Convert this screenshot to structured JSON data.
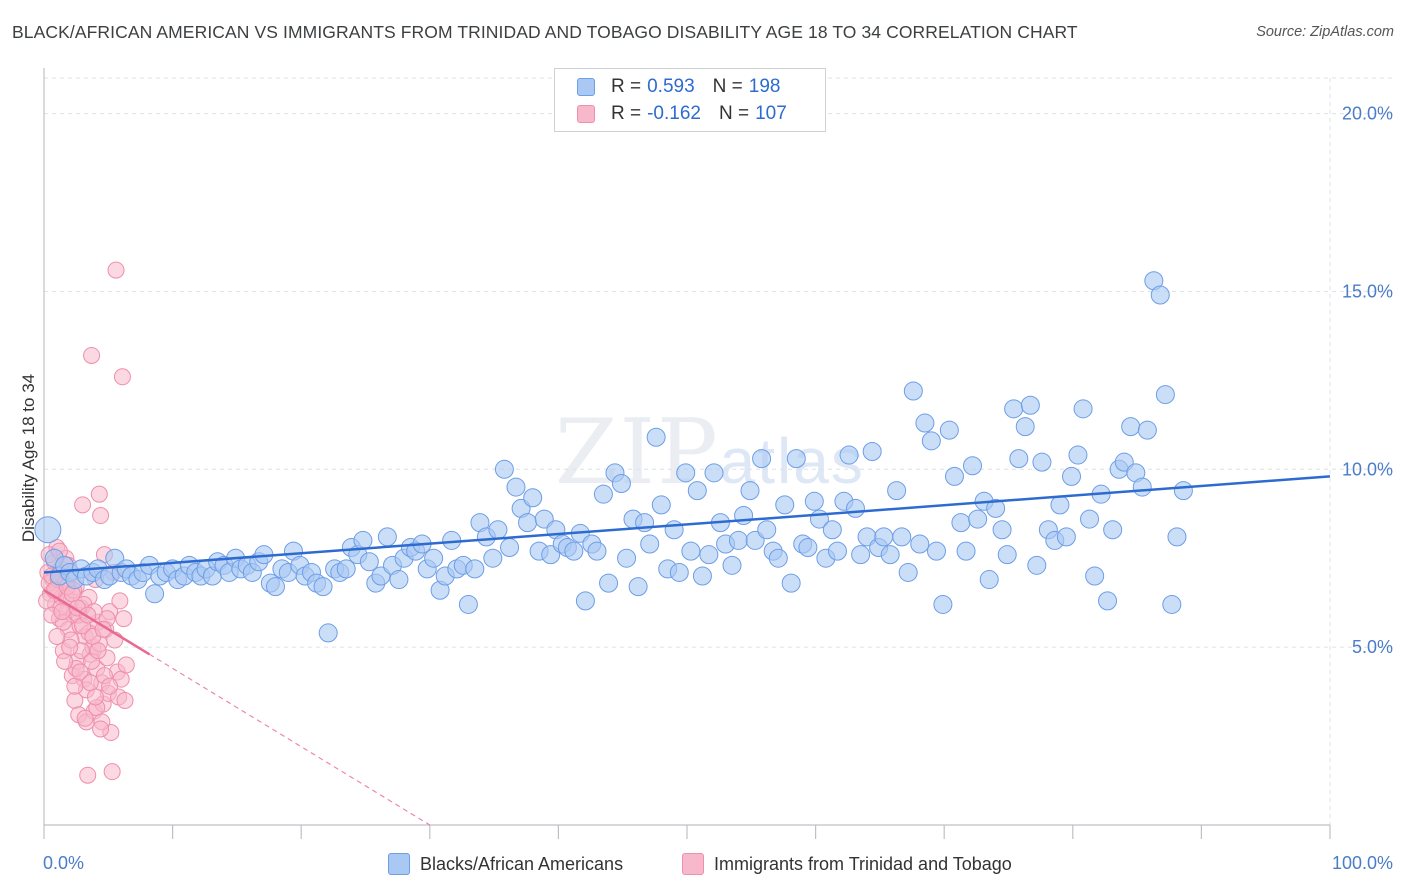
{
  "header": {
    "title": "BLACK/AFRICAN AMERICAN VS IMMIGRANTS FROM TRINIDAD AND TOBAGO DISABILITY AGE 18 TO 34 CORRELATION CHART",
    "source": "Source: ZipAtlas.com"
  },
  "watermark": {
    "main": "ZIP",
    "sub": "atlas"
  },
  "legend": {
    "r_label": "R =",
    "n_label": "N =",
    "rows": [
      {
        "r": "0.593",
        "n": "198",
        "color": "#a9c8f3",
        "border": "#6d9ee6"
      },
      {
        "r": "-0.162",
        "n": "107",
        "color": "#f7b8cb",
        "border": "#ee8fac"
      }
    ]
  },
  "bottom_legend": {
    "series_a": "Blacks/African Americans",
    "series_b": "Immigrants from Trinidad and Tobago"
  },
  "colors": {
    "blue_fill": "#a9c8f3",
    "blue_stroke": "#6d9ee6",
    "blue_line": "#2e6bd0",
    "pink_fill": "#f7b8cb",
    "pink_stroke": "#ee8fac",
    "pink_line": "#e86a93",
    "grid": "#dde1e6",
    "tick_text": "#4a7cc9"
  },
  "chart_data": {
    "type": "scatter",
    "title": "BLACK/AFRICAN AMERICAN VS IMMIGRANTS FROM TRINIDAD AND TOBAGO DISABILITY AGE 18 TO 34 CORRELATION CHART",
    "xlabel": "",
    "ylabel": "Disability Age 18 to 34",
    "xlim": [
      0,
      100
    ],
    "ylim": [
      0,
      21
    ],
    "x_tick_labels": [
      "0.0%",
      "100.0%"
    ],
    "y_ticks": [
      5,
      10,
      15,
      20
    ],
    "y_tick_labels": [
      "5.0%",
      "10.0%",
      "15.0%",
      "20.0%"
    ],
    "grid": true,
    "legend_placement": "top-center",
    "series": [
      {
        "name": "Blacks/African Americans",
        "r": 0.593,
        "n": 198,
        "trend": {
          "x": [
            0,
            100
          ],
          "y": [
            7.1,
            9.8
          ],
          "style": "solid"
        },
        "points": [
          [
            0.3,
            8.3
          ],
          [
            0.8,
            7.5
          ],
          [
            1.2,
            7.0
          ],
          [
            1.6,
            7.3
          ],
          [
            2.0,
            7.1
          ],
          [
            2.4,
            6.9
          ],
          [
            2.9,
            7.2
          ],
          [
            3.3,
            7.0
          ],
          [
            3.8,
            7.1
          ],
          [
            4.2,
            7.2
          ],
          [
            4.7,
            6.9
          ],
          [
            5.1,
            7.0
          ],
          [
            5.5,
            7.5
          ],
          [
            6.0,
            7.1
          ],
          [
            6.4,
            7.2
          ],
          [
            6.8,
            7.0
          ],
          [
            7.3,
            6.9
          ],
          [
            7.7,
            7.1
          ],
          [
            8.2,
            7.3
          ],
          [
            8.6,
            6.5
          ],
          [
            9.0,
            7.0
          ],
          [
            9.5,
            7.1
          ],
          [
            10.0,
            7.2
          ],
          [
            10.4,
            6.9
          ],
          [
            10.9,
            7.0
          ],
          [
            11.3,
            7.3
          ],
          [
            11.8,
            7.1
          ],
          [
            12.2,
            7.0
          ],
          [
            12.6,
            7.2
          ],
          [
            13.1,
            7.0
          ],
          [
            13.5,
            7.4
          ],
          [
            14.0,
            7.3
          ],
          [
            14.4,
            7.1
          ],
          [
            14.9,
            7.5
          ],
          [
            15.3,
            7.2
          ],
          [
            15.8,
            7.3
          ],
          [
            16.2,
            7.1
          ],
          [
            16.7,
            7.4
          ],
          [
            17.1,
            7.6
          ],
          [
            17.6,
            6.8
          ],
          [
            18.0,
            6.7
          ],
          [
            18.5,
            7.2
          ],
          [
            19.0,
            7.1
          ],
          [
            19.4,
            7.7
          ],
          [
            19.9,
            7.3
          ],
          [
            20.3,
            7.0
          ],
          [
            20.8,
            7.1
          ],
          [
            21.2,
            6.8
          ],
          [
            21.7,
            6.7
          ],
          [
            22.1,
            5.4
          ],
          [
            22.6,
            7.2
          ],
          [
            23.0,
            7.1
          ],
          [
            23.5,
            7.2
          ],
          [
            23.9,
            7.8
          ],
          [
            24.4,
            7.6
          ],
          [
            24.8,
            8.0
          ],
          [
            25.3,
            7.4
          ],
          [
            25.8,
            6.8
          ],
          [
            26.2,
            7.0
          ],
          [
            26.7,
            8.1
          ],
          [
            27.1,
            7.3
          ],
          [
            27.6,
            6.9
          ],
          [
            28.0,
            7.5
          ],
          [
            28.5,
            7.8
          ],
          [
            28.9,
            7.7
          ],
          [
            29.4,
            7.9
          ],
          [
            29.8,
            7.2
          ],
          [
            30.3,
            7.5
          ],
          [
            30.8,
            6.6
          ],
          [
            31.2,
            7.0
          ],
          [
            31.7,
            8.0
          ],
          [
            32.1,
            7.2
          ],
          [
            32.6,
            7.3
          ],
          [
            33.0,
            6.2
          ],
          [
            33.5,
            7.2
          ],
          [
            33.9,
            8.5
          ],
          [
            34.4,
            8.1
          ],
          [
            34.9,
            7.5
          ],
          [
            35.3,
            8.3
          ],
          [
            35.8,
            10.0
          ],
          [
            36.2,
            7.8
          ],
          [
            36.7,
            9.5
          ],
          [
            37.1,
            8.9
          ],
          [
            37.6,
            8.5
          ],
          [
            38.0,
            9.2
          ],
          [
            38.5,
            7.7
          ],
          [
            38.9,
            8.6
          ],
          [
            39.4,
            7.6
          ],
          [
            39.8,
            8.3
          ],
          [
            40.3,
            7.9
          ],
          [
            40.7,
            7.8
          ],
          [
            41.2,
            7.7
          ],
          [
            41.7,
            8.2
          ],
          [
            42.1,
            6.3
          ],
          [
            42.6,
            7.9
          ],
          [
            43.0,
            7.7
          ],
          [
            43.5,
            9.3
          ],
          [
            43.9,
            6.8
          ],
          [
            44.4,
            9.9
          ],
          [
            44.9,
            9.6
          ],
          [
            45.3,
            7.5
          ],
          [
            45.8,
            8.6
          ],
          [
            46.2,
            6.7
          ],
          [
            46.7,
            8.5
          ],
          [
            47.1,
            7.9
          ],
          [
            47.6,
            10.9
          ],
          [
            48.0,
            9.0
          ],
          [
            48.5,
            7.2
          ],
          [
            49.0,
            8.3
          ],
          [
            49.4,
            7.1
          ],
          [
            49.9,
            9.9
          ],
          [
            50.3,
            7.7
          ],
          [
            50.8,
            9.4
          ],
          [
            51.2,
            7.0
          ],
          [
            51.7,
            7.6
          ],
          [
            52.1,
            9.9
          ],
          [
            52.6,
            8.5
          ],
          [
            53.0,
            7.9
          ],
          [
            53.5,
            7.3
          ],
          [
            54.0,
            8.0
          ],
          [
            54.4,
            8.7
          ],
          [
            54.9,
            9.4
          ],
          [
            55.3,
            8.0
          ],
          [
            55.8,
            10.3
          ],
          [
            56.2,
            8.3
          ],
          [
            56.7,
            7.7
          ],
          [
            57.1,
            7.5
          ],
          [
            57.6,
            9.0
          ],
          [
            58.1,
            6.8
          ],
          [
            58.5,
            10.3
          ],
          [
            59.0,
            7.9
          ],
          [
            59.4,
            7.8
          ],
          [
            59.9,
            9.1
          ],
          [
            60.3,
            8.6
          ],
          [
            60.8,
            7.5
          ],
          [
            61.3,
            8.3
          ],
          [
            61.7,
            7.7
          ],
          [
            62.2,
            9.1
          ],
          [
            62.6,
            10.4
          ],
          [
            63.1,
            8.9
          ],
          [
            63.5,
            7.6
          ],
          [
            64.0,
            8.1
          ],
          [
            64.4,
            10.5
          ],
          [
            64.9,
            7.8
          ],
          [
            65.3,
            8.1
          ],
          [
            65.8,
            7.6
          ],
          [
            66.3,
            9.4
          ],
          [
            66.7,
            8.1
          ],
          [
            67.2,
            7.1
          ],
          [
            67.6,
            12.2
          ],
          [
            68.1,
            7.9
          ],
          [
            68.5,
            11.3
          ],
          [
            69.0,
            10.8
          ],
          [
            69.4,
            7.7
          ],
          [
            69.9,
            6.2
          ],
          [
            70.4,
            11.1
          ],
          [
            70.8,
            9.8
          ],
          [
            71.3,
            8.5
          ],
          [
            71.7,
            7.7
          ],
          [
            72.2,
            10.1
          ],
          [
            72.6,
            8.6
          ],
          [
            73.1,
            9.1
          ],
          [
            73.5,
            6.9
          ],
          [
            74.0,
            8.9
          ],
          [
            74.5,
            8.3
          ],
          [
            74.9,
            7.6
          ],
          [
            75.4,
            11.7
          ],
          [
            75.8,
            10.3
          ],
          [
            76.3,
            11.2
          ],
          [
            76.7,
            11.8
          ],
          [
            77.2,
            7.3
          ],
          [
            77.6,
            10.2
          ],
          [
            78.1,
            8.3
          ],
          [
            78.6,
            8.0
          ],
          [
            79.0,
            9.0
          ],
          [
            79.5,
            8.1
          ],
          [
            79.9,
            9.8
          ],
          [
            80.4,
            10.4
          ],
          [
            80.8,
            11.7
          ],
          [
            81.3,
            8.6
          ],
          [
            81.7,
            7.0
          ],
          [
            82.2,
            9.3
          ],
          [
            82.7,
            6.3
          ],
          [
            83.1,
            8.3
          ],
          [
            83.6,
            10.0
          ],
          [
            84.0,
            10.2
          ],
          [
            84.5,
            11.2
          ],
          [
            84.9,
            9.9
          ],
          [
            85.4,
            9.5
          ],
          [
            85.8,
            11.1
          ],
          [
            86.3,
            15.3
          ],
          [
            86.8,
            14.9
          ],
          [
            87.2,
            12.1
          ],
          [
            87.7,
            6.2
          ],
          [
            88.1,
            8.1
          ],
          [
            88.6,
            9.4
          ]
        ]
      },
      {
        "name": "Immigrants from Trinidad and Tobago",
        "r": -0.162,
        "n": 107,
        "trend": {
          "x": [
            0,
            8.2
          ],
          "y": [
            6.6,
            4.8
          ],
          "style": "solid",
          "dashed_extension_to": [
            30,
            0
          ]
        },
        "points": [
          [
            0.3,
            7.1
          ],
          [
            0.5,
            6.5
          ],
          [
            0.7,
            6.9
          ],
          [
            0.8,
            7.4
          ],
          [
            0.9,
            6.2
          ],
          [
            1.0,
            7.8
          ],
          [
            1.1,
            6.6
          ],
          [
            1.2,
            5.8
          ],
          [
            1.3,
            7.2
          ],
          [
            1.4,
            6.4
          ],
          [
            1.5,
            4.9
          ],
          [
            1.6,
            6.8
          ],
          [
            1.7,
            7.5
          ],
          [
            1.8,
            6.0
          ],
          [
            1.9,
            5.5
          ],
          [
            2.0,
            7.0
          ],
          [
            2.1,
            6.3
          ],
          [
            2.2,
            4.2
          ],
          [
            2.3,
            5.9
          ],
          [
            2.4,
            3.5
          ],
          [
            2.5,
            6.7
          ],
          [
            2.6,
            4.6
          ],
          [
            2.7,
            3.1
          ],
          [
            2.8,
            5.6
          ],
          [
            2.9,
            6.1
          ],
          [
            3.0,
            9.0
          ],
          [
            3.1,
            4.1
          ],
          [
            3.2,
            5.3
          ],
          [
            3.3,
            2.9
          ],
          [
            3.4,
            1.4
          ],
          [
            3.5,
            6.4
          ],
          [
            3.6,
            4.8
          ],
          [
            3.7,
            13.2
          ],
          [
            3.8,
            5.0
          ],
          [
            3.9,
            3.2
          ],
          [
            4.0,
            6.9
          ],
          [
            4.1,
            4.4
          ],
          [
            4.2,
            5.7
          ],
          [
            4.3,
            9.3
          ],
          [
            4.4,
            8.7
          ],
          [
            4.5,
            4.0
          ],
          [
            4.6,
            3.4
          ],
          [
            4.7,
            7.6
          ],
          [
            4.8,
            5.5
          ],
          [
            4.9,
            4.7
          ],
          [
            5.0,
            3.7
          ],
          [
            5.1,
            6.0
          ],
          [
            5.2,
            2.6
          ],
          [
            5.3,
            1.5
          ],
          [
            5.4,
            7.1
          ],
          [
            5.5,
            5.2
          ],
          [
            5.6,
            15.6
          ],
          [
            5.7,
            4.3
          ],
          [
            5.8,
            3.6
          ],
          [
            5.9,
            6.3
          ],
          [
            6.0,
            4.1
          ],
          [
            6.1,
            12.6
          ],
          [
            6.2,
            5.8
          ],
          [
            6.3,
            3.5
          ],
          [
            6.4,
            4.5
          ],
          [
            0.4,
            6.8
          ],
          [
            0.6,
            7.0
          ],
          [
            0.9,
            6.6
          ],
          [
            1.1,
            6.9
          ],
          [
            1.3,
            6.1
          ],
          [
            1.5,
            5.7
          ],
          [
            1.7,
            6.4
          ],
          [
            1.9,
            7.3
          ],
          [
            2.1,
            5.2
          ],
          [
            2.3,
            6.6
          ],
          [
            2.5,
            4.4
          ],
          [
            2.7,
            5.9
          ],
          [
            2.9,
            4.9
          ],
          [
            3.1,
            6.2
          ],
          [
            3.3,
            3.8
          ],
          [
            3.5,
            5.4
          ],
          [
            3.7,
            4.6
          ],
          [
            3.9,
            6.0
          ],
          [
            4.1,
            3.3
          ],
          [
            4.3,
            5.1
          ],
          [
            4.5,
            2.9
          ],
          [
            4.7,
            4.2
          ],
          [
            4.9,
            5.8
          ],
          [
            5.1,
            3.9
          ],
          [
            0.2,
            6.3
          ],
          [
            0.4,
            7.6
          ],
          [
            0.6,
            5.9
          ],
          [
            0.8,
            6.6
          ],
          [
            1.0,
            5.3
          ],
          [
            1.2,
            7.7
          ],
          [
            1.4,
            6.0
          ],
          [
            1.6,
            4.6
          ],
          [
            1.8,
            6.7
          ],
          [
            2.0,
            5.0
          ],
          [
            2.2,
            6.5
          ],
          [
            2.4,
            3.9
          ],
          [
            2.6,
            6.1
          ],
          [
            2.8,
            4.3
          ],
          [
            3.0,
            5.6
          ],
          [
            3.2,
            3.0
          ],
          [
            3.4,
            5.9
          ],
          [
            3.6,
            4.0
          ],
          [
            3.8,
            5.3
          ],
          [
            4.0,
            3.6
          ],
          [
            4.2,
            4.9
          ],
          [
            4.4,
            2.7
          ],
          [
            4.6,
            5.5
          ]
        ]
      }
    ]
  }
}
